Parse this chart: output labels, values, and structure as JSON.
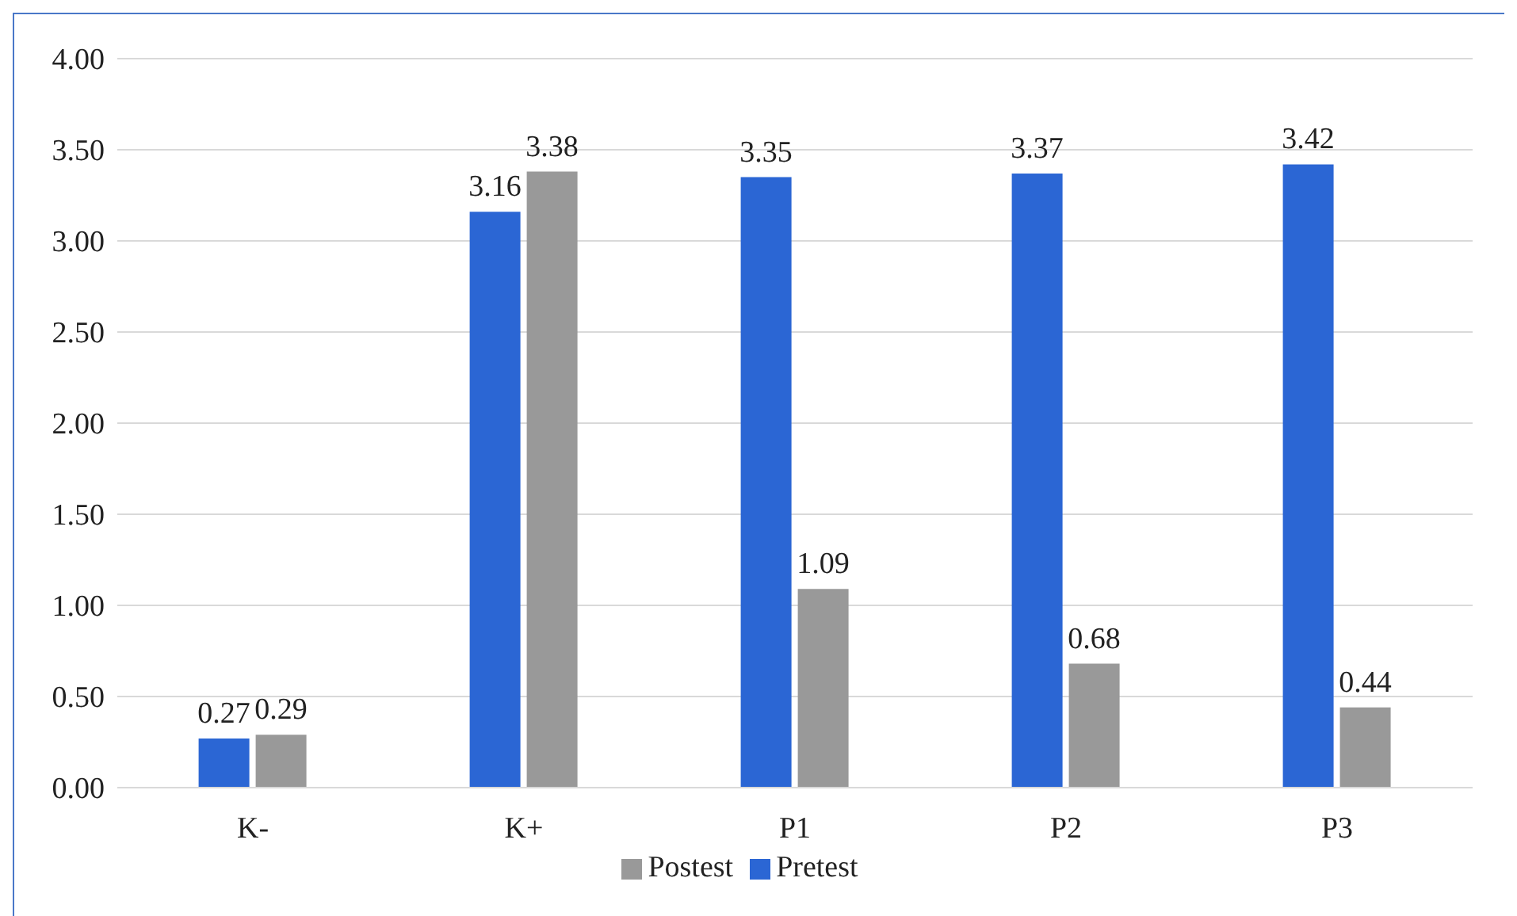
{
  "chart_data": {
    "type": "bar",
    "categories": [
      "K-",
      "K+",
      "P1",
      "P2",
      "P3"
    ],
    "series": [
      {
        "name": "Pretest",
        "color": "#2b66d4",
        "values": [
          0.27,
          3.16,
          3.35,
          3.37,
          3.42
        ]
      },
      {
        "name": "Postest",
        "color": "#999999",
        "values": [
          0.29,
          3.38,
          1.09,
          0.68,
          0.44
        ]
      }
    ],
    "ylim": [
      0,
      4
    ],
    "yticks": [
      {
        "value": 0,
        "label": "0.00"
      },
      {
        "value": 0.5,
        "label": "0.50"
      },
      {
        "value": 1,
        "label": "1.00"
      },
      {
        "value": 1.5,
        "label": "1.50"
      },
      {
        "value": 2,
        "label": "2.00"
      },
      {
        "value": 2.5,
        "label": "2.50"
      },
      {
        "value": 3,
        "label": "3.00"
      },
      {
        "value": 3.5,
        "label": "3.50"
      },
      {
        "value": 4,
        "label": "4.00"
      }
    ],
    "grid": "y",
    "legend": "bottom",
    "data_labels": true
  }
}
